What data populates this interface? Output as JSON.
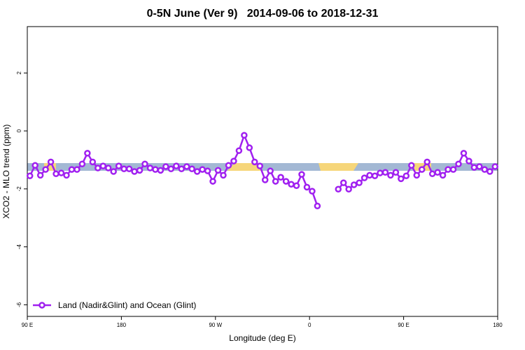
{
  "chart_data": {
    "type": "line",
    "title": "0-5N June (Ver 9)   2014-09-06 to 2018-12-31",
    "x_label": "Longitude (deg E)",
    "y_label": "XCO2 - MLO trend (ppm)",
    "x": [
      92.5,
      97.5,
      102.5,
      107.5,
      112.5,
      117.5,
      122.5,
      127.5,
      132.5,
      137.5,
      142.5,
      147.5,
      152.5,
      157.5,
      162.5,
      167.5,
      172.5,
      177.5,
      182.5,
      187.5,
      192.5,
      197.5,
      202.5,
      207.5,
      212.5,
      217.5,
      222.5,
      227.5,
      232.5,
      237.5,
      242.5,
      247.5,
      252.5,
      257.5,
      262.5,
      267.5,
      272.5,
      277.5,
      282.5,
      287.5,
      292.5,
      297.5,
      302.5,
      307.5,
      312.5,
      317.5,
      322.5,
      327.5,
      332.5,
      337.5,
      342.5,
      347.5,
      352.5,
      357.5,
      362.5,
      367.5,
      372.5,
      377.5,
      382.5,
      387.5,
      392.5,
      397.5,
      402.5,
      407.5,
      412.5,
      417.5,
      422.5,
      427.5,
      432.5,
      437.5,
      442.5,
      447.5,
      452.5,
      457.5,
      462.5,
      467.5,
      472.5,
      477.5,
      482.5,
      487.5,
      492.5,
      497.5,
      502.5,
      507.5,
      512.5,
      517.5,
      522.5,
      527.5,
      532.5,
      537.5
    ],
    "series": [
      {
        "name": "Land (Nadir&Glint) and Ocean (Glint)",
        "color": "#a020f0",
        "values": [
          -1.55,
          -1.19,
          -1.53,
          -1.33,
          -1.07,
          -1.48,
          -1.45,
          -1.53,
          -1.33,
          -1.33,
          -1.14,
          -0.77,
          -1.07,
          -1.28,
          -1.21,
          -1.28,
          -1.4,
          -1.21,
          -1.31,
          -1.31,
          -1.4,
          -1.36,
          -1.14,
          -1.28,
          -1.33,
          -1.36,
          -1.23,
          -1.31,
          -1.21,
          -1.31,
          -1.23,
          -1.31,
          -1.4,
          -1.33,
          -1.38,
          -1.74,
          -1.36,
          -1.53,
          -1.19,
          -1.04,
          -0.68,
          -0.15,
          -0.58,
          -1.07,
          -1.21,
          -1.69,
          -1.38,
          -1.74,
          -1.6,
          -1.74,
          -1.84,
          -1.89,
          -1.5,
          -1.94,
          -2.08,
          -2.59,
          null,
          null,
          null,
          -2.01,
          -1.79,
          -2.01,
          -1.86,
          -1.79,
          -1.62,
          -1.53,
          -1.55,
          -1.45,
          -1.43,
          -1.53,
          -1.43,
          -1.65,
          -1.55,
          -1.19,
          -1.53,
          -1.33,
          -1.07,
          -1.48,
          -1.43,
          -1.53,
          -1.33,
          -1.33,
          -1.14,
          -0.77,
          -1.04,
          -1.26,
          -1.23,
          -1.33,
          -1.4,
          -1.23
        ]
      }
    ],
    "xlim": [
      90,
      540
    ],
    "xticks": [
      {
        "value": 90,
        "label": "90 E"
      },
      180,
      {
        "value": 270,
        "label": "90 W"
      },
      {
        "value": 360,
        "label": "0"
      },
      {
        "value": 450,
        "label": "90 E"
      },
      {
        "value": 540,
        "label": "180"
      }
    ],
    "ylim": [
      -6.4,
      3.6
    ],
    "yticks": [
      -6,
      -4,
      -2,
      0,
      2
    ],
    "grid": false,
    "legend": "bottom-left"
  }
}
